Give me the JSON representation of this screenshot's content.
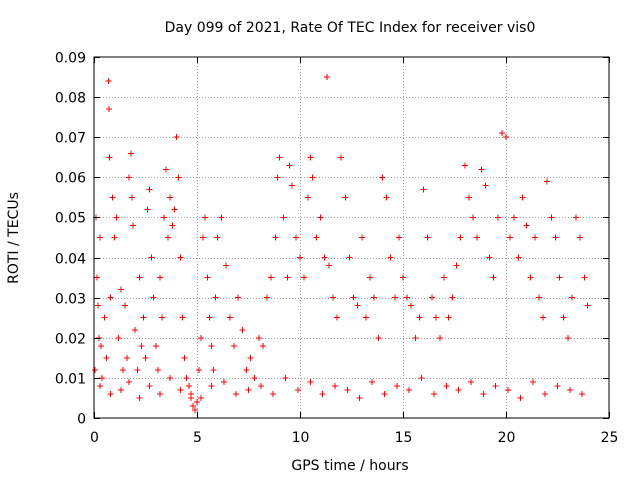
{
  "chart_data": {
    "type": "scatter",
    "title": "Day 099 of 2021, Rate Of TEC Index for receiver vis0",
    "xlabel": "GPS time / hours",
    "ylabel": "ROTI / TECUs",
    "xlim": [
      0,
      25
    ],
    "ylim": [
      0,
      0.09
    ],
    "xticks": [
      0,
      5,
      10,
      15,
      20,
      25
    ],
    "yticks": [
      0,
      0.01,
      0.02,
      0.03,
      0.04,
      0.05,
      0.06,
      0.07,
      0.08,
      0.09
    ],
    "xtick_labels": [
      "0",
      "5",
      "10",
      "15",
      "20",
      "25"
    ],
    "ytick_labels": [
      "0",
      "0.01",
      "0.02",
      "0.03",
      "0.04",
      "0.05",
      "0.06",
      "0.07",
      "0.08",
      "0.09"
    ],
    "grid": true,
    "marker": "+",
    "color": "#ff0000",
    "series": [
      {
        "name": "ROTI",
        "x": [
          0.05,
          0.1,
          0.15,
          0.2,
          0.25,
          0.3,
          0.35,
          0.4,
          0.5,
          0.6,
          0.7,
          0.72,
          0.75,
          0.8,
          0.9,
          1.0,
          1.1,
          1.2,
          1.3,
          1.4,
          1.5,
          1.6,
          1.7,
          1.8,
          1.85,
          1.9,
          2.0,
          2.1,
          2.2,
          2.3,
          2.4,
          2.5,
          2.6,
          2.7,
          2.8,
          2.9,
          3.0,
          3.1,
          3.2,
          3.3,
          3.4,
          3.5,
          3.6,
          3.7,
          3.8,
          3.9,
          4.0,
          4.1,
          4.2,
          4.3,
          4.4,
          4.5,
          4.6,
          4.7,
          4.8,
          4.9,
          5.0,
          5.1,
          5.2,
          5.3,
          5.4,
          5.5,
          5.6,
          5.7,
          5.8,
          5.9,
          6.0,
          6.2,
          6.4,
          6.6,
          6.8,
          7.0,
          7.2,
          7.4,
          7.6,
          7.8,
          8.0,
          8.2,
          8.4,
          8.6,
          8.8,
          8.9,
          9.0,
          9.2,
          9.4,
          9.5,
          9.6,
          9.8,
          10.0,
          10.2,
          10.4,
          10.5,
          10.6,
          10.8,
          11.0,
          11.2,
          11.3,
          11.4,
          11.6,
          11.8,
          12.0,
          12.2,
          12.4,
          12.6,
          12.8,
          13.0,
          13.2,
          13.4,
          13.6,
          13.8,
          14.0,
          14.2,
          14.4,
          14.6,
          14.8,
          15.0,
          15.2,
          15.4,
          15.6,
          15.8,
          16.0,
          16.2,
          16.4,
          16.6,
          16.8,
          17.0,
          17.2,
          17.4,
          17.6,
          17.8,
          18.0,
          18.2,
          18.4,
          18.6,
          18.8,
          19.0,
          19.2,
          19.4,
          19.6,
          19.8,
          20.0,
          20.2,
          20.4,
          20.6,
          20.8,
          21.0,
          21.2,
          21.4,
          21.6,
          21.8,
          22.0,
          22.2,
          22.4,
          22.6,
          22.8,
          23.0,
          23.2,
          23.4,
          23.6,
          23.8,
          23.95,
          0.3,
          0.8,
          1.3,
          1.7,
          2.2,
          2.7,
          3.2,
          3.7,
          4.2,
          4.7,
          5.2,
          5.7,
          6.3,
          6.9,
          7.5,
          8.1,
          8.7,
          9.3,
          9.9,
          10.5,
          11.1,
          11.7,
          12.3,
          12.9,
          13.5,
          14.1,
          14.7,
          15.3,
          15.9,
          16.5,
          17.1,
          17.7,
          18.3,
          18.9,
          19.5,
          20.1,
          20.7,
          21.3,
          21.9,
          22.5,
          23.1,
          23.7
        ],
        "y": [
          0.012,
          0.05,
          0.035,
          0.028,
          0.02,
          0.045,
          0.018,
          0.01,
          0.025,
          0.015,
          0.084,
          0.077,
          0.065,
          0.03,
          0.055,
          0.045,
          0.05,
          0.02,
          0.032,
          0.012,
          0.028,
          0.015,
          0.06,
          0.066,
          0.055,
          0.048,
          0.022,
          0.012,
          0.035,
          0.018,
          0.025,
          0.015,
          0.052,
          0.057,
          0.04,
          0.03,
          0.018,
          0.012,
          0.035,
          0.025,
          0.05,
          0.062,
          0.045,
          0.055,
          0.048,
          0.052,
          0.07,
          0.06,
          0.04,
          0.025,
          0.015,
          0.01,
          0.008,
          0.005,
          0.003,
          0.002,
          0.004,
          0.012,
          0.02,
          0.045,
          0.05,
          0.035,
          0.025,
          0.018,
          0.012,
          0.03,
          0.045,
          0.05,
          0.038,
          0.025,
          0.018,
          0.03,
          0.022,
          0.012,
          0.015,
          0.01,
          0.02,
          0.018,
          0.03,
          0.035,
          0.045,
          0.06,
          0.065,
          0.05,
          0.035,
          0.063,
          0.058,
          0.045,
          0.04,
          0.035,
          0.055,
          0.065,
          0.06,
          0.045,
          0.05,
          0.04,
          0.085,
          0.038,
          0.03,
          0.025,
          0.065,
          0.055,
          0.04,
          0.03,
          0.028,
          0.045,
          0.025,
          0.035,
          0.03,
          0.02,
          0.06,
          0.055,
          0.04,
          0.03,
          0.045,
          0.035,
          0.03,
          0.028,
          0.02,
          0.025,
          0.057,
          0.045,
          0.03,
          0.025,
          0.02,
          0.035,
          0.025,
          0.03,
          0.038,
          0.045,
          0.063,
          0.055,
          0.05,
          0.045,
          0.062,
          0.058,
          0.04,
          0.035,
          0.05,
          0.071,
          0.07,
          0.045,
          0.05,
          0.04,
          0.055,
          0.048,
          0.035,
          0.045,
          0.03,
          0.025,
          0.059,
          0.05,
          0.045,
          0.035,
          0.025,
          0.02,
          0.03,
          0.05,
          0.045,
          0.035,
          0.028,
          0.008,
          0.006,
          0.007,
          0.009,
          0.005,
          0.008,
          0.006,
          0.01,
          0.007,
          0.006,
          0.005,
          0.008,
          0.009,
          0.006,
          0.007,
          0.008,
          0.006,
          0.01,
          0.007,
          0.009,
          0.006,
          0.008,
          0.007,
          0.005,
          0.009,
          0.006,
          0.008,
          0.007,
          0.01,
          0.006,
          0.008,
          0.007,
          0.009,
          0.006,
          0.008,
          0.007,
          0.005,
          0.009,
          0.006,
          0.008,
          0.007,
          0.006
        ]
      }
    ]
  }
}
